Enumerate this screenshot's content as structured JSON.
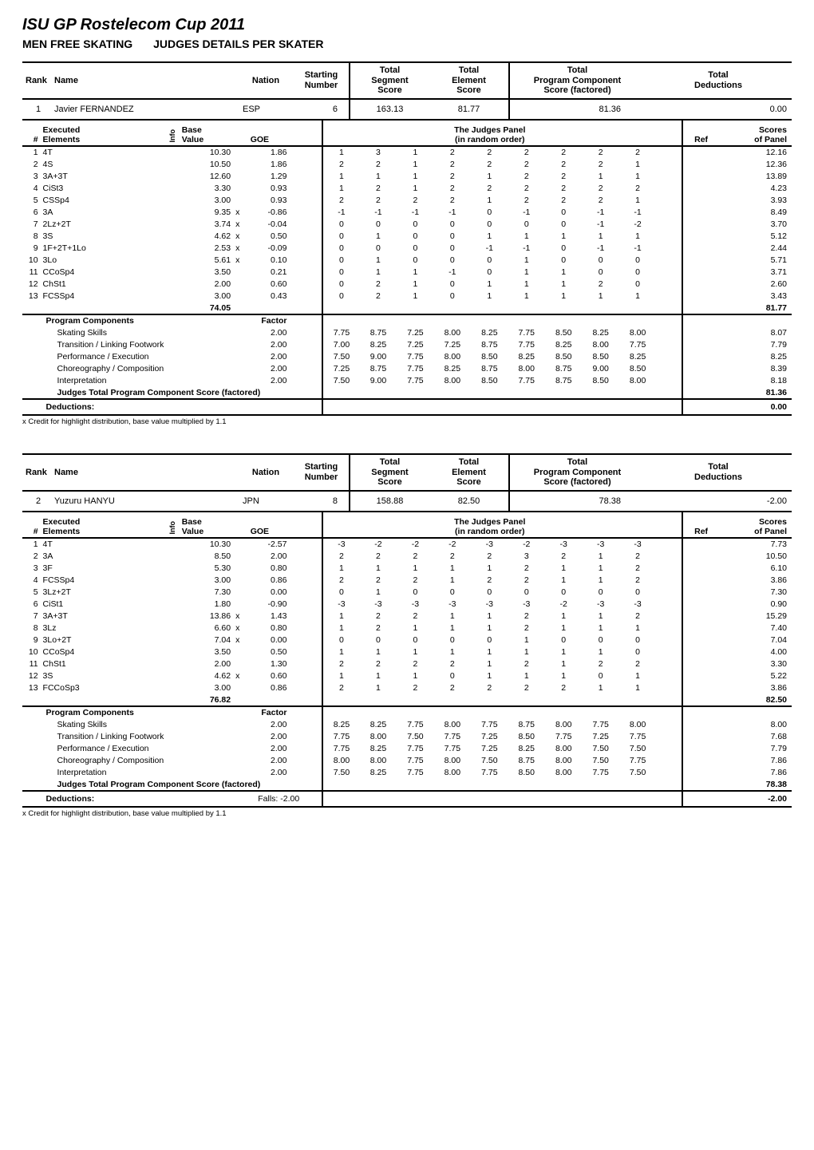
{
  "competition": "ISU GP Rostelecom Cup 2011",
  "segment": "MEN FREE SKATING",
  "subtitle": "JUDGES DETAILS PER SKATER",
  "header_labels": {
    "rank": "Rank",
    "name": "Name",
    "nation": "Nation",
    "starting_number": "Starting\nNumber",
    "total_segment": "Total\nSegment\nScore",
    "total_element": "Total\nElement\nScore",
    "total_program": "Total\nProgram Component\nScore (factored)",
    "total_deductions": "Total\nDeductions"
  },
  "elem_header": {
    "idx": "#",
    "executed": "Executed\nElements",
    "info": "Info",
    "base": "Base\nValue",
    "goe": "GOE",
    "panel": "The Judges Panel\n(in random order)",
    "ref": "Ref",
    "scores": "Scores\nof Panel"
  },
  "pc_header": "Program Components",
  "pc_factor_label": "Factor",
  "pc_total_label": "Judges Total Program Component Score (factored)",
  "ded_label": "Deductions:",
  "footnote": "x  Credit for highlight distribution, base value multiplied by 1.1",
  "skaters": [
    {
      "rank": "1",
      "name": "Javier FERNANDEZ",
      "nation": "ESP",
      "starting_number": "6",
      "segment_score": "163.13",
      "element_score": "81.77",
      "program_score": "81.36",
      "deductions_total": "0.00",
      "elements": [
        {
          "n": "1",
          "code": "4T",
          "info": "",
          "bv": "10.30",
          "x": "",
          "goe": "1.86",
          "j": [
            "1",
            "3",
            "1",
            "2",
            "2",
            "2",
            "2",
            "2",
            "2"
          ],
          "sop": "12.16"
        },
        {
          "n": "2",
          "code": "4S",
          "info": "",
          "bv": "10.50",
          "x": "",
          "goe": "1.86",
          "j": [
            "2",
            "2",
            "1",
            "2",
            "2",
            "2",
            "2",
            "2",
            "1"
          ],
          "sop": "12.36"
        },
        {
          "n": "3",
          "code": "3A+3T",
          "info": "",
          "bv": "12.60",
          "x": "",
          "goe": "1.29",
          "j": [
            "1",
            "1",
            "1",
            "2",
            "1",
            "2",
            "2",
            "1",
            "1"
          ],
          "sop": "13.89"
        },
        {
          "n": "4",
          "code": "CiSt3",
          "info": "",
          "bv": "3.30",
          "x": "",
          "goe": "0.93",
          "j": [
            "1",
            "2",
            "1",
            "2",
            "2",
            "2",
            "2",
            "2",
            "2"
          ],
          "sop": "4.23"
        },
        {
          "n": "5",
          "code": "CSSp4",
          "info": "",
          "bv": "3.00",
          "x": "",
          "goe": "0.93",
          "j": [
            "2",
            "2",
            "2",
            "2",
            "1",
            "2",
            "2",
            "2",
            "1"
          ],
          "sop": "3.93"
        },
        {
          "n": "6",
          "code": "3A",
          "info": "",
          "bv": "9.35",
          "x": "x",
          "goe": "-0.86",
          "j": [
            "-1",
            "-1",
            "-1",
            "-1",
            "0",
            "-1",
            "0",
            "-1",
            "-1"
          ],
          "sop": "8.49"
        },
        {
          "n": "7",
          "code": "2Lz+2T",
          "info": "",
          "bv": "3.74",
          "x": "x",
          "goe": "-0.04",
          "j": [
            "0",
            "0",
            "0",
            "0",
            "0",
            "0",
            "0",
            "-1",
            "-2"
          ],
          "sop": "3.70"
        },
        {
          "n": "8",
          "code": "3S",
          "info": "",
          "bv": "4.62",
          "x": "x",
          "goe": "0.50",
          "j": [
            "0",
            "1",
            "0",
            "0",
            "1",
            "1",
            "1",
            "1",
            "1"
          ],
          "sop": "5.12"
        },
        {
          "n": "9",
          "code": "1F+2T+1Lo",
          "info": "",
          "bv": "2.53",
          "x": "x",
          "goe": "-0.09",
          "j": [
            "0",
            "0",
            "0",
            "0",
            "-1",
            "-1",
            "0",
            "-1",
            "-1"
          ],
          "sop": "2.44"
        },
        {
          "n": "10",
          "code": "3Lo",
          "info": "",
          "bv": "5.61",
          "x": "x",
          "goe": "0.10",
          "j": [
            "0",
            "1",
            "0",
            "0",
            "0",
            "1",
            "0",
            "0",
            "0"
          ],
          "sop": "5.71"
        },
        {
          "n": "11",
          "code": "CCoSp4",
          "info": "",
          "bv": "3.50",
          "x": "",
          "goe": "0.21",
          "j": [
            "0",
            "1",
            "1",
            "-1",
            "0",
            "1",
            "1",
            "0",
            "0"
          ],
          "sop": "3.71"
        },
        {
          "n": "12",
          "code": "ChSt1",
          "info": "",
          "bv": "2.00",
          "x": "",
          "goe": "0.60",
          "j": [
            "0",
            "2",
            "1",
            "0",
            "1",
            "1",
            "1",
            "2",
            "0"
          ],
          "sop": "2.60"
        },
        {
          "n": "13",
          "code": "FCSSp4",
          "info": "",
          "bv": "3.00",
          "x": "",
          "goe": "0.43",
          "j": [
            "0",
            "2",
            "1",
            "0",
            "1",
            "1",
            "1",
            "1",
            "1"
          ],
          "sop": "3.43"
        }
      ],
      "bv_total": "74.05",
      "sop_total": "81.77",
      "pc": [
        {
          "label": "Skating Skills",
          "factor": "2.00",
          "j": [
            "7.75",
            "8.75",
            "7.25",
            "8.00",
            "8.25",
            "7.75",
            "8.50",
            "8.25",
            "8.00"
          ],
          "score": "8.07"
        },
        {
          "label": "Transition / Linking Footwork",
          "factor": "2.00",
          "j": [
            "7.00",
            "8.25",
            "7.25",
            "7.25",
            "8.75",
            "7.75",
            "8.25",
            "8.00",
            "7.75"
          ],
          "score": "7.79"
        },
        {
          "label": "Performance / Execution",
          "factor": "2.00",
          "j": [
            "7.50",
            "9.00",
            "7.75",
            "8.00",
            "8.50",
            "8.25",
            "8.50",
            "8.50",
            "8.25"
          ],
          "score": "8.25"
        },
        {
          "label": "Choreography / Composition",
          "factor": "2.00",
          "j": [
            "7.25",
            "8.75",
            "7.75",
            "8.25",
            "8.75",
            "8.00",
            "8.75",
            "9.00",
            "8.50"
          ],
          "score": "8.39"
        },
        {
          "label": "Interpretation",
          "factor": "2.00",
          "j": [
            "7.50",
            "9.00",
            "7.75",
            "8.00",
            "8.50",
            "7.75",
            "8.75",
            "8.50",
            "8.00"
          ],
          "score": "8.18"
        }
      ],
      "pc_total": "81.36",
      "ded_detail": "",
      "ded_value": "0.00"
    },
    {
      "rank": "2",
      "name": "Yuzuru HANYU",
      "nation": "JPN",
      "starting_number": "8",
      "segment_score": "158.88",
      "element_score": "82.50",
      "program_score": "78.38",
      "deductions_total": "-2.00",
      "elements": [
        {
          "n": "1",
          "code": "4T",
          "info": "",
          "bv": "10.30",
          "x": "",
          "goe": "-2.57",
          "j": [
            "-3",
            "-2",
            "-2",
            "-2",
            "-3",
            "-2",
            "-3",
            "-3",
            "-3"
          ],
          "sop": "7.73"
        },
        {
          "n": "2",
          "code": "3A",
          "info": "",
          "bv": "8.50",
          "x": "",
          "goe": "2.00",
          "j": [
            "2",
            "2",
            "2",
            "2",
            "2",
            "3",
            "2",
            "1",
            "2"
          ],
          "sop": "10.50"
        },
        {
          "n": "3",
          "code": "3F",
          "info": "",
          "bv": "5.30",
          "x": "",
          "goe": "0.80",
          "j": [
            "1",
            "1",
            "1",
            "1",
            "1",
            "2",
            "1",
            "1",
            "2"
          ],
          "sop": "6.10"
        },
        {
          "n": "4",
          "code": "FCSSp4",
          "info": "",
          "bv": "3.00",
          "x": "",
          "goe": "0.86",
          "j": [
            "2",
            "2",
            "2",
            "1",
            "2",
            "2",
            "1",
            "1",
            "2"
          ],
          "sop": "3.86"
        },
        {
          "n": "5",
          "code": "3Lz+2T",
          "info": "",
          "bv": "7.30",
          "x": "",
          "goe": "0.00",
          "j": [
            "0",
            "1",
            "0",
            "0",
            "0",
            "0",
            "0",
            "0",
            "0"
          ],
          "sop": "7.30"
        },
        {
          "n": "6",
          "code": "CiSt1",
          "info": "",
          "bv": "1.80",
          "x": "",
          "goe": "-0.90",
          "j": [
            "-3",
            "-3",
            "-3",
            "-3",
            "-3",
            "-3",
            "-2",
            "-3",
            "-3"
          ],
          "sop": "0.90"
        },
        {
          "n": "7",
          "code": "3A+3T",
          "info": "",
          "bv": "13.86",
          "x": "x",
          "goe": "1.43",
          "j": [
            "1",
            "2",
            "2",
            "1",
            "1",
            "2",
            "1",
            "1",
            "2"
          ],
          "sop": "15.29"
        },
        {
          "n": "8",
          "code": "3Lz",
          "info": "",
          "bv": "6.60",
          "x": "x",
          "goe": "0.80",
          "j": [
            "1",
            "2",
            "1",
            "1",
            "1",
            "2",
            "1",
            "1",
            "1"
          ],
          "sop": "7.40"
        },
        {
          "n": "9",
          "code": "3Lo+2T",
          "info": "",
          "bv": "7.04",
          "x": "x",
          "goe": "0.00",
          "j": [
            "0",
            "0",
            "0",
            "0",
            "0",
            "1",
            "0",
            "0",
            "0"
          ],
          "sop": "7.04"
        },
        {
          "n": "10",
          "code": "CCoSp4",
          "info": "",
          "bv": "3.50",
          "x": "",
          "goe": "0.50",
          "j": [
            "1",
            "1",
            "1",
            "1",
            "1",
            "1",
            "1",
            "1",
            "0"
          ],
          "sop": "4.00"
        },
        {
          "n": "11",
          "code": "ChSt1",
          "info": "",
          "bv": "2.00",
          "x": "",
          "goe": "1.30",
          "j": [
            "2",
            "2",
            "2",
            "2",
            "1",
            "2",
            "1",
            "2",
            "2"
          ],
          "sop": "3.30"
        },
        {
          "n": "12",
          "code": "3S",
          "info": "",
          "bv": "4.62",
          "x": "x",
          "goe": "0.60",
          "j": [
            "1",
            "1",
            "1",
            "0",
            "1",
            "1",
            "1",
            "0",
            "1"
          ],
          "sop": "5.22"
        },
        {
          "n": "13",
          "code": "FCCoSp3",
          "info": "",
          "bv": "3.00",
          "x": "",
          "goe": "0.86",
          "j": [
            "2",
            "1",
            "2",
            "2",
            "2",
            "2",
            "2",
            "1",
            "1"
          ],
          "sop": "3.86"
        }
      ],
      "bv_total": "76.82",
      "sop_total": "82.50",
      "pc": [
        {
          "label": "Skating Skills",
          "factor": "2.00",
          "j": [
            "8.25",
            "8.25",
            "7.75",
            "8.00",
            "7.75",
            "8.75",
            "8.00",
            "7.75",
            "8.00"
          ],
          "score": "8.00"
        },
        {
          "label": "Transition / Linking Footwork",
          "factor": "2.00",
          "j": [
            "7.75",
            "8.00",
            "7.50",
            "7.75",
            "7.25",
            "8.50",
            "7.75",
            "7.25",
            "7.75"
          ],
          "score": "7.68"
        },
        {
          "label": "Performance / Execution",
          "factor": "2.00",
          "j": [
            "7.75",
            "8.25",
            "7.75",
            "7.75",
            "7.25",
            "8.25",
            "8.00",
            "7.50",
            "7.50"
          ],
          "score": "7.79"
        },
        {
          "label": "Choreography / Composition",
          "factor": "2.00",
          "j": [
            "8.00",
            "8.00",
            "7.75",
            "8.00",
            "7.50",
            "8.75",
            "8.00",
            "7.50",
            "7.75"
          ],
          "score": "7.86"
        },
        {
          "label": "Interpretation",
          "factor": "2.00",
          "j": [
            "7.50",
            "8.25",
            "7.75",
            "8.00",
            "7.75",
            "8.50",
            "8.00",
            "7.75",
            "7.50"
          ],
          "score": "7.86"
        }
      ],
      "pc_total": "78.38",
      "ded_detail": "Falls:   -2.00",
      "ded_value": "-2.00"
    }
  ]
}
